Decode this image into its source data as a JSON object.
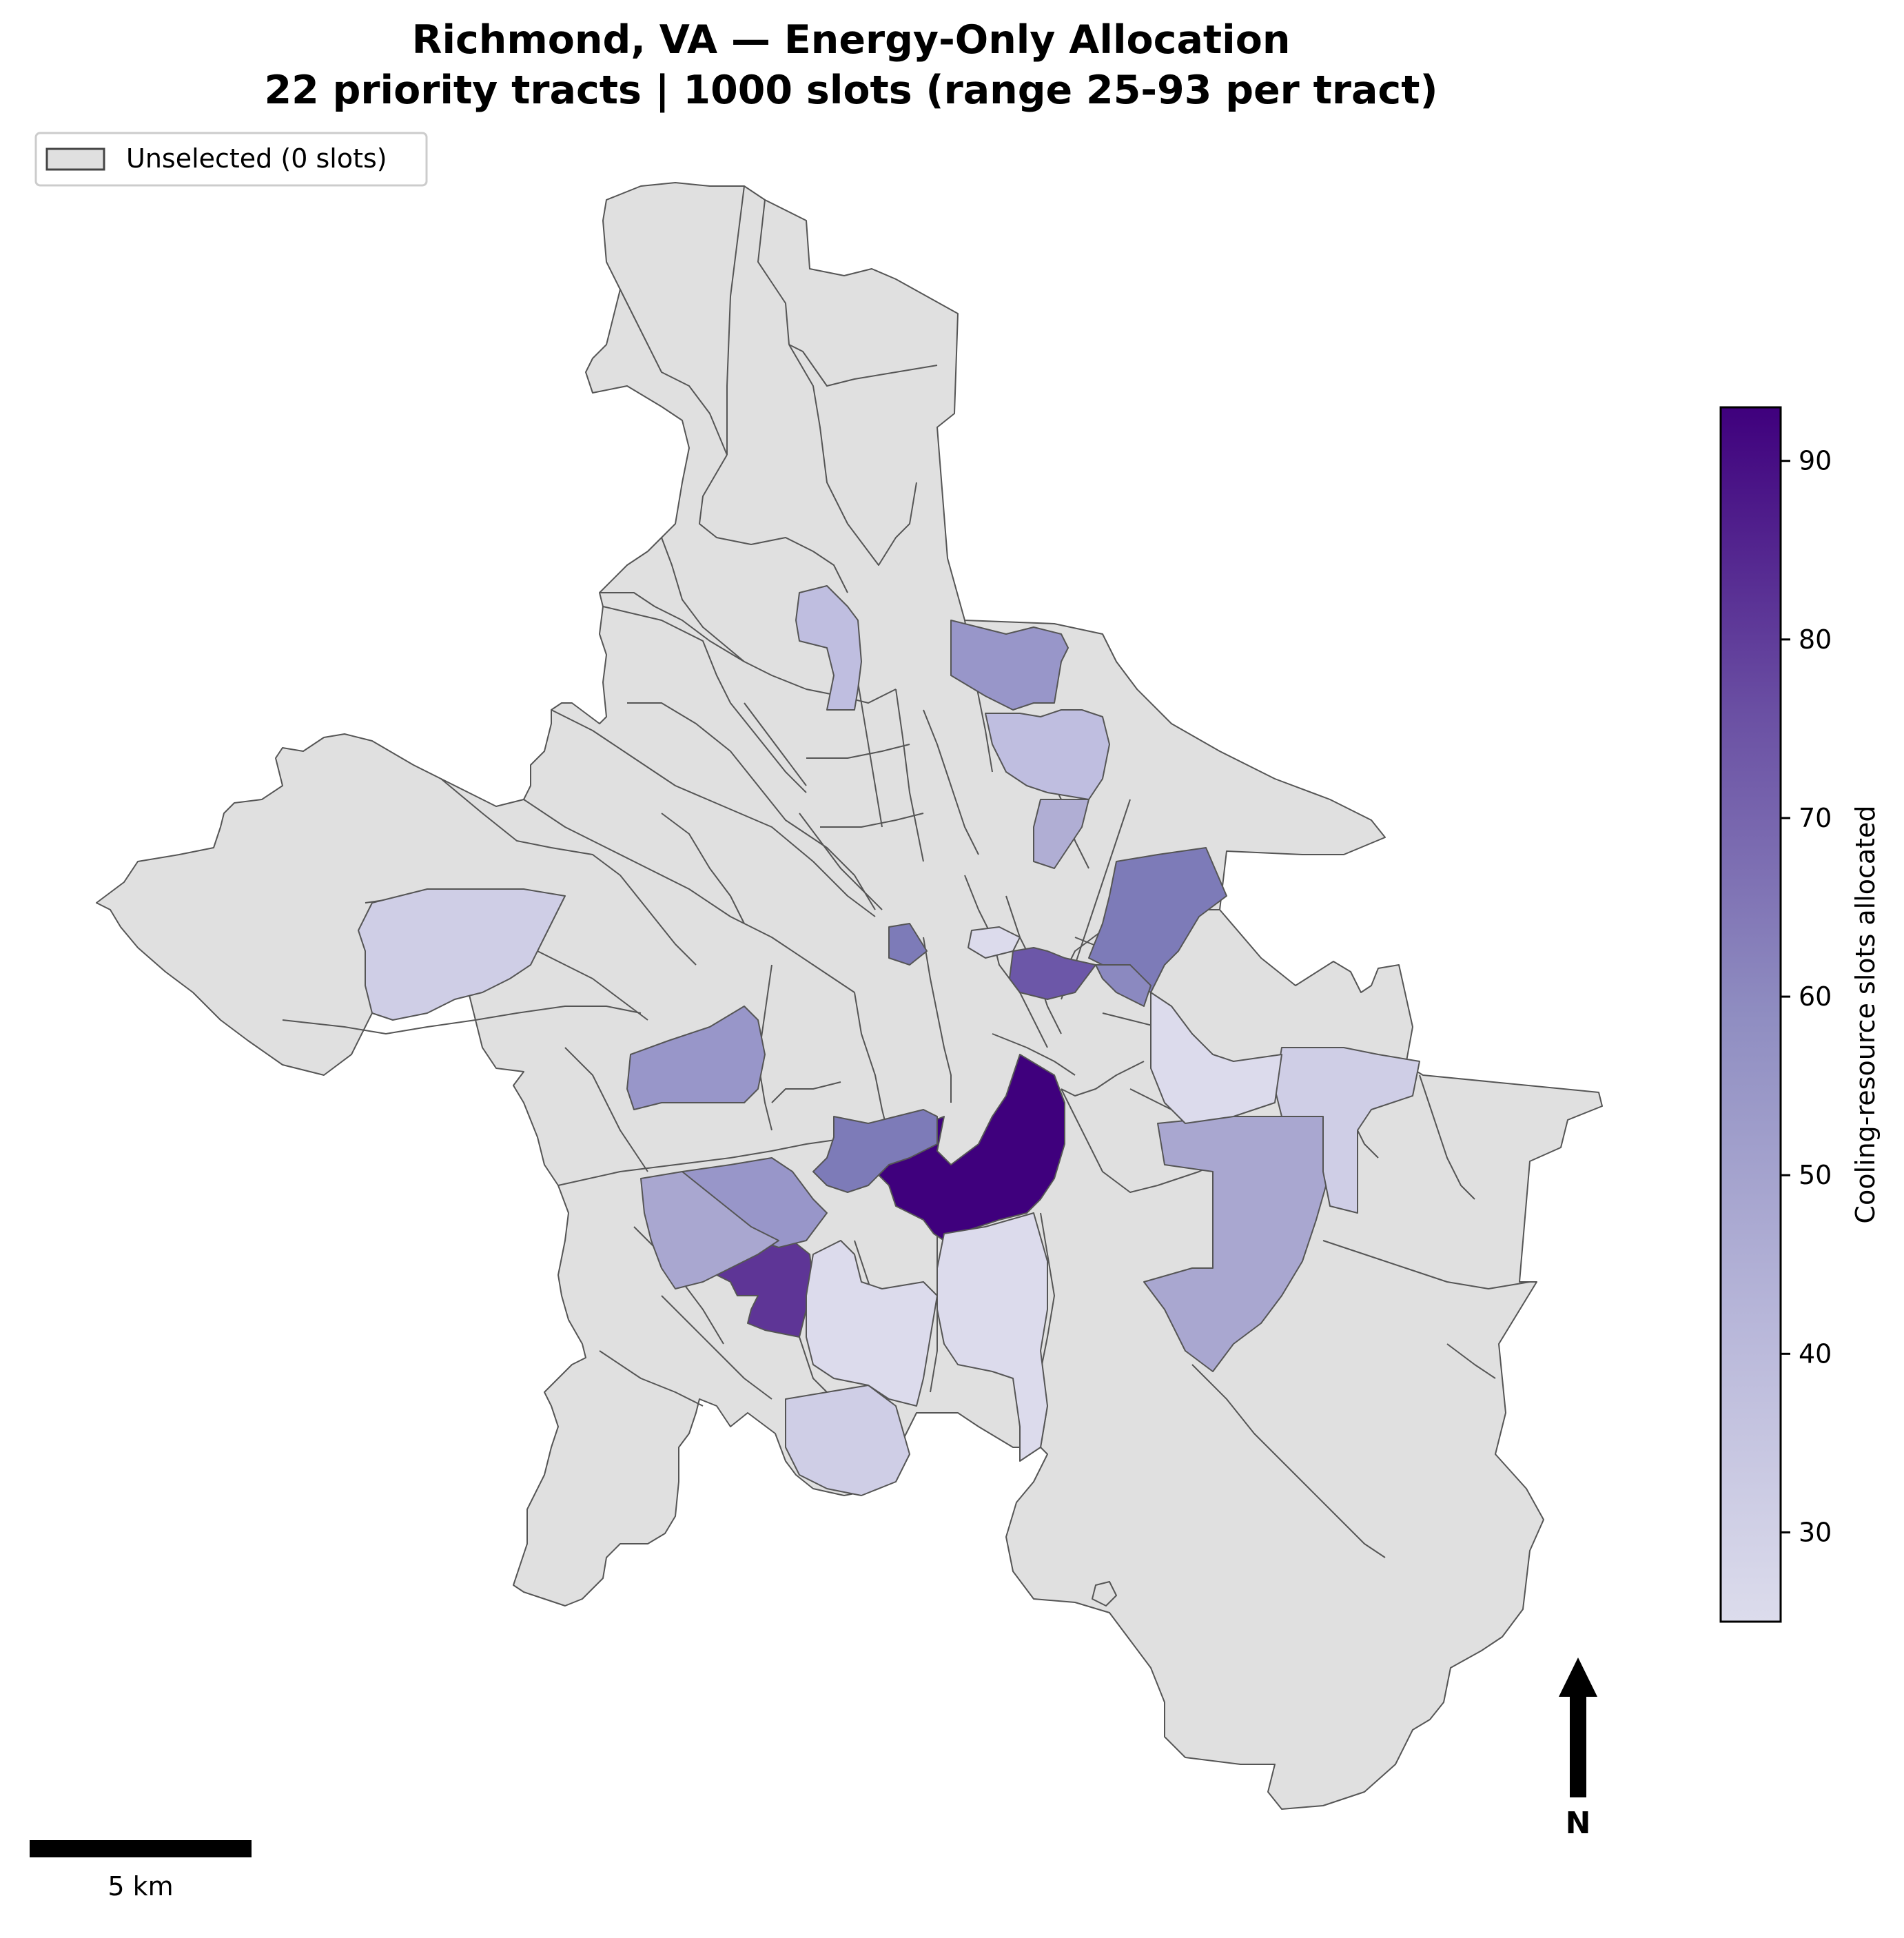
{
  "title_line1": "Richmond, VA — Energy-Only Allocation",
  "title_line2": "22 priority tracts | 1000 slots (range 25-93 per tract)",
  "legend": {
    "entries": [
      {
        "label": "Unselected (0 slots)",
        "color": "#e0e0e0"
      }
    ]
  },
  "colorbar": {
    "label": "Cooling-resource slots allocated",
    "ticks": [
      30,
      40,
      50,
      60,
      70,
      80,
      90
    ],
    "range": [
      25,
      93
    ],
    "colormap": "Purples",
    "color_low": "#dcdcec",
    "color_high": "#3f007d"
  },
  "scalebar": {
    "label": "5 km"
  },
  "north_arrow": {
    "label": "N"
  },
  "colors": {
    "unselected": "#e0e0e0",
    "tract_border": "#555555",
    "background": "#ffffff"
  }
}
